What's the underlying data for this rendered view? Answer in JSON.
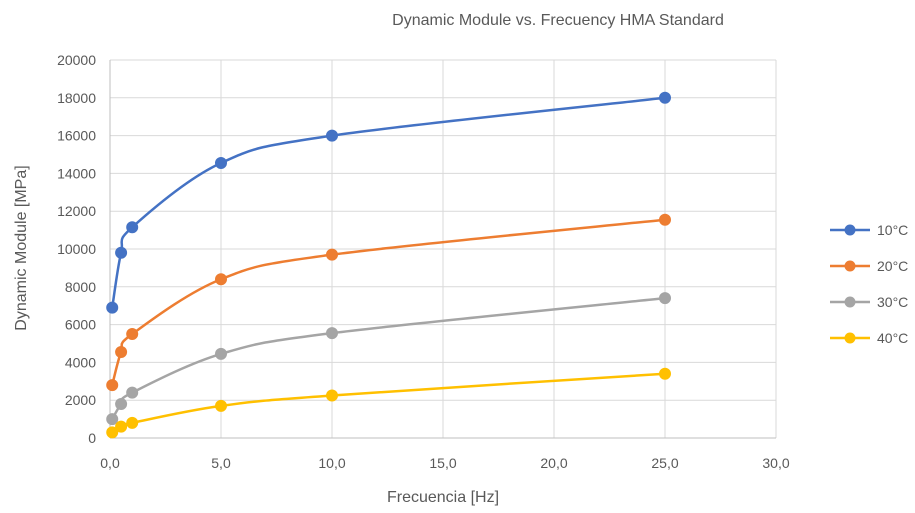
{
  "chart_data": {
    "type": "line",
    "title": "Dynamic Module vs. Frecuency HMA Standard",
    "xlabel": "Frecuencia [Hz]",
    "ylabel": "Dynamic Module [MPa]",
    "xlim": [
      0,
      30
    ],
    "ylim": [
      0,
      20000
    ],
    "x_ticks": [
      "0,0",
      "5,0",
      "10,0",
      "15,0",
      "20,0",
      "25,0",
      "30,0"
    ],
    "y_ticks": [
      "0",
      "2000",
      "4000",
      "6000",
      "8000",
      "10000",
      "12000",
      "14000",
      "16000",
      "18000",
      "20000"
    ],
    "x_tick_values": [
      0,
      5,
      10,
      15,
      20,
      25,
      30
    ],
    "y_tick_values": [
      0,
      2000,
      4000,
      6000,
      8000,
      10000,
      12000,
      14000,
      16000,
      18000,
      20000
    ],
    "grid": true,
    "legend_position": "right",
    "x": [
      0.1,
      0.5,
      1,
      5,
      10,
      25
    ],
    "series": [
      {
        "name": "10°C",
        "color": "#4472C4",
        "values": [
          6900,
          9800,
          11150,
          14550,
          16000,
          18000
        ]
      },
      {
        "name": "20°C",
        "color": "#ED7D31",
        "values": [
          2800,
          4550,
          5500,
          8400,
          9700,
          11550
        ]
      },
      {
        "name": "30°C",
        "color": "#A5A5A5",
        "values": [
          1000,
          1800,
          2400,
          4450,
          5550,
          7400
        ]
      },
      {
        "name": "40°C",
        "color": "#FFC000",
        "values": [
          300,
          600,
          800,
          1700,
          2250,
          3400
        ]
      }
    ]
  }
}
